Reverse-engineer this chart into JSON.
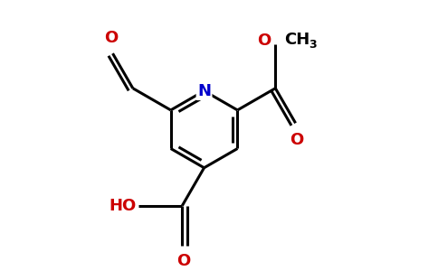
{
  "background_color": "#ffffff",
  "bond_color": "#000000",
  "N_color": "#0000cc",
  "O_color": "#cc0000",
  "line_width": 2.2,
  "figsize": [
    4.84,
    3.0
  ],
  "dpi": 100,
  "xlim": [
    0,
    4.84
  ],
  "ylim": [
    0,
    3.0
  ]
}
